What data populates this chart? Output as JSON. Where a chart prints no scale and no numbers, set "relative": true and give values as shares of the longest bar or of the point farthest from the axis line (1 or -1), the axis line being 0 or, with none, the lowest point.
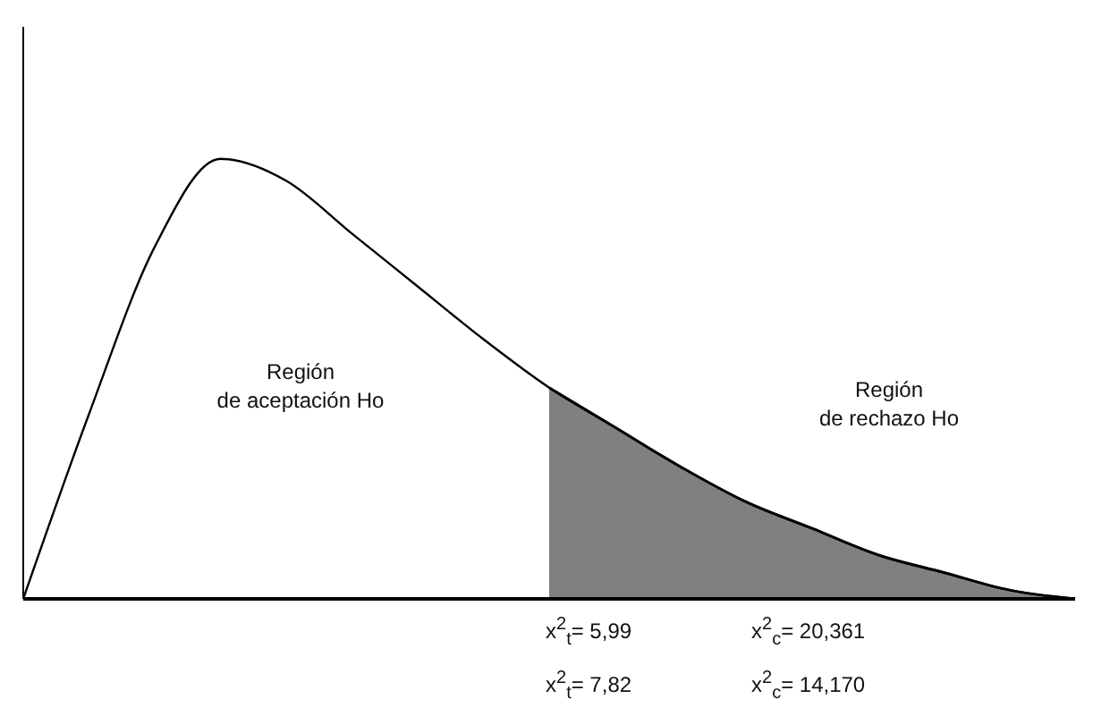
{
  "chart_data": {
    "type": "line",
    "relative": true,
    "categories": [
      null,
      null,
      null,
      null,
      null,
      null,
      null,
      null,
      null,
      null,
      null,
      null,
      null,
      null,
      null,
      null,
      null
    ],
    "series": [
      {
        "color": "#000000",
        "values": [
          0,
          0.42,
          0.8,
          1,
          0.95,
          0.83,
          0.71,
          0.59,
          0.48,
          0.39,
          0.3,
          0.22,
          0.16,
          0.1,
          0.06,
          0.02,
          0
        ]
      },
      {
        "type": "area",
        "color": "#808080",
        "values": [
          null,
          null,
          null,
          null,
          null,
          null,
          null,
          null,
          0.48,
          0.39,
          0.3,
          0.22,
          0.16,
          0.1,
          0.06,
          0.02,
          0
        ]
      }
    ],
    "annotations": [
      "Región\nde aceptación Ho",
      "Región\nde rechazo Ho",
      "x$^{2}$$_{t}$= 5,99",
      "x$^{2}$$_{c}$= 20,361",
      "x$^{2}$$_{t}$= 7,82",
      "x$^{2}$$_{c}$= 14,170"
    ],
    "grid": false,
    "legend": false
  }
}
